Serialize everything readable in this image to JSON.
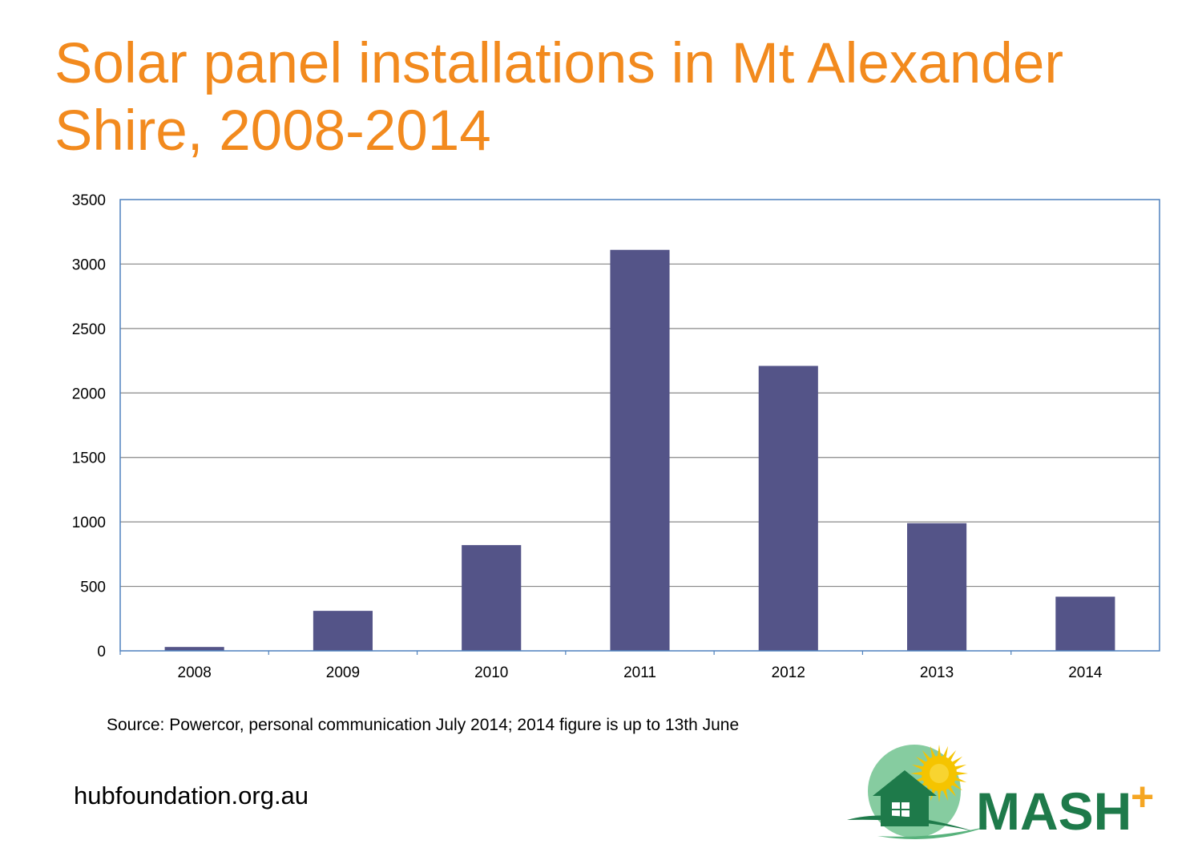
{
  "slide": {
    "title": "Solar panel installations in Mt Alexander Shire, 2008-2014",
    "source": "Source: Powercor, personal communication July 2014; 2014 figure is up to 13th June",
    "footer_url": "hubfoundation.org.au"
  },
  "logo": {
    "wordmark": "MASH",
    "plus": "+",
    "icon": "house-sun-icon",
    "colors": {
      "wordmark": "#1e7a4a",
      "plus": "#f5a623",
      "sun": "#f5c400",
      "circle": "#7cc79a"
    }
  },
  "chart_data": {
    "type": "bar",
    "categories": [
      "2008",
      "2009",
      "2010",
      "2011",
      "2012",
      "2013",
      "2014"
    ],
    "values": [
      30,
      310,
      820,
      3110,
      2210,
      990,
      420
    ],
    "ylim": [
      0,
      3500
    ],
    "yticks": [
      0,
      500,
      1000,
      1500,
      2000,
      2500,
      3000,
      3500
    ],
    "grid": true,
    "legend": "none",
    "bar_color": "#545488",
    "title": "",
    "xlabel": "",
    "ylabel": ""
  }
}
